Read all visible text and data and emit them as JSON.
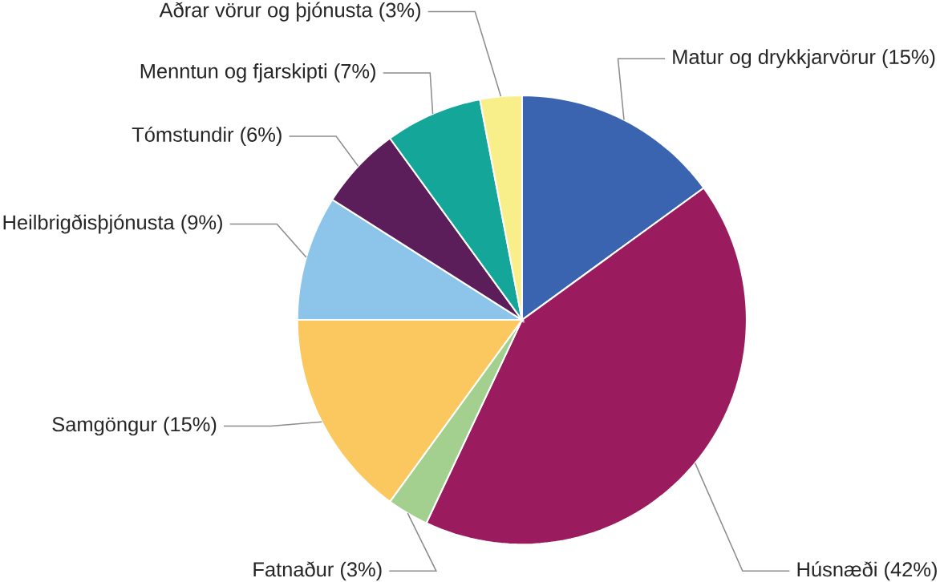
{
  "chart_data": {
    "type": "pie",
    "categories": [
      "Matur og drykkjarvörur",
      "Húsnæði",
      "Fatnaður",
      "Samgöngur",
      "Heilbrigðisþjónusta",
      "Tómstundir",
      "Menntun og fjarskipti",
      "Aðrar vörur og þjónusta"
    ],
    "values": [
      15,
      42,
      3,
      15,
      9,
      6,
      7,
      3
    ],
    "colors": [
      "#3a64b0",
      "#9b1c5e",
      "#a3d08f",
      "#fbc85f",
      "#8cc4ea",
      "#5c1e5a",
      "#15a69a",
      "#f8ef8a"
    ],
    "value_labels": [
      "(15%)",
      "(42%)",
      "(3%)",
      "(15%)",
      "(9%)",
      "(6%)",
      "(7%)",
      "(3%)"
    ]
  }
}
